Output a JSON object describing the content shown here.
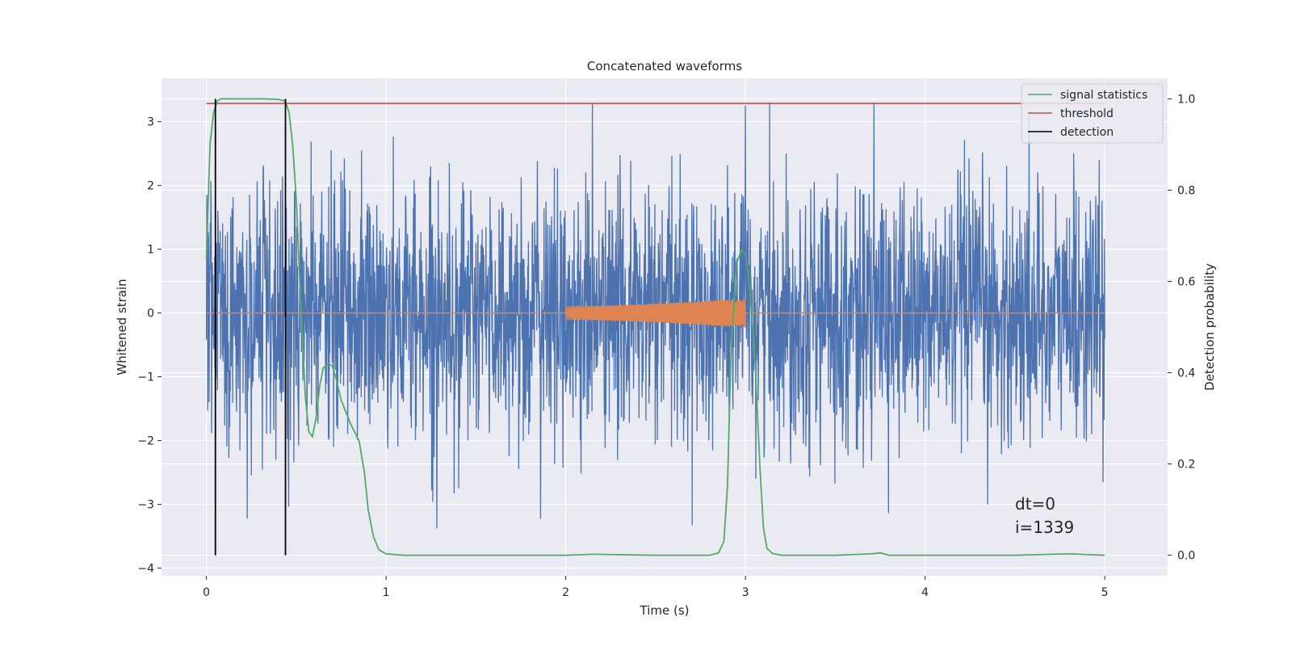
{
  "chart_data": {
    "type": "line",
    "title": "Concatenated waveforms",
    "xlabel": "Time (s)",
    "ylabel_left": "Whitened strain",
    "ylabel_right": "Detection probability",
    "xlim": [
      -0.25,
      5.35
    ],
    "ylim_left": [
      -4.12,
      3.68
    ],
    "ylim_right": [
      -0.045,
      1.045
    ],
    "x_ticks": [
      0,
      1,
      2,
      3,
      4,
      5
    ],
    "x_tick_labels": [
      "0",
      "1",
      "2",
      "3",
      "4",
      "5"
    ],
    "y_left_ticks": [
      -4,
      -3,
      -2,
      -1,
      0,
      1,
      2,
      3
    ],
    "y_left_tick_labels": [
      "−4",
      "−3",
      "−2",
      "−1",
      "0",
      "1",
      "2",
      "3"
    ],
    "y_right_ticks": [
      0.0,
      0.2,
      0.4,
      0.6,
      0.8,
      1.0
    ],
    "y_right_tick_labels": [
      "0.0",
      "0.2",
      "0.4",
      "0.6",
      "0.8",
      "1.0"
    ],
    "grid": true,
    "legend_position": "top-right",
    "series": [
      {
        "name": "",
        "kind": "noise",
        "axis": "left",
        "color": "#4C72B0",
        "x_range": [
          0,
          5
        ],
        "y_envelope": [
          -3.8,
          3.3
        ],
        "typical_amplitude": 1.0
      },
      {
        "name": "",
        "kind": "chirp",
        "axis": "left",
        "color": "#DD8452",
        "x_range": [
          0,
          5
        ],
        "chirp_x_range": [
          2.0,
          3.0
        ],
        "amplitude_start": 0.1,
        "amplitude_end": 0.23
      },
      {
        "name": "signal statistics",
        "axis": "right",
        "color": "#55A868",
        "x": [
          0,
          0.02,
          0.04,
          0.06,
          0.08,
          0.1,
          0.15,
          0.2,
          0.3,
          0.4,
          0.44,
          0.46,
          0.48,
          0.5,
          0.52,
          0.55,
          0.57,
          0.59,
          0.61,
          0.63,
          0.65,
          0.68,
          0.7,
          0.72,
          0.75,
          0.8,
          0.85,
          0.88,
          0.9,
          0.93,
          0.96,
          1.0,
          1.1,
          1.5,
          2.0,
          2.15,
          2.5,
          2.8,
          2.85,
          2.88,
          2.9,
          2.92,
          2.95,
          2.98,
          3.0,
          3.02,
          3.05,
          3.08,
          3.1,
          3.12,
          3.15,
          3.2,
          3.5,
          3.7,
          3.75,
          3.8,
          4.0,
          4.5,
          4.8,
          5.0
        ],
        "y": [
          0.65,
          0.9,
          0.97,
          0.995,
          1.0,
          1.0,
          1.0,
          1.0,
          1.0,
          0.999,
          0.995,
          0.97,
          0.9,
          0.78,
          0.6,
          0.35,
          0.27,
          0.26,
          0.3,
          0.37,
          0.41,
          0.42,
          0.415,
          0.39,
          0.34,
          0.29,
          0.25,
          0.18,
          0.1,
          0.04,
          0.012,
          0.003,
          0.0,
          0.0,
          0.0,
          0.002,
          0.0,
          0.0,
          0.005,
          0.03,
          0.15,
          0.45,
          0.64,
          0.67,
          0.66,
          0.6,
          0.45,
          0.2,
          0.06,
          0.015,
          0.004,
          0.0,
          0.0,
          0.003,
          0.005,
          0.0,
          0.0,
          0.0,
          0.003,
          0.0
        ]
      },
      {
        "name": "threshold",
        "axis": "right",
        "color": "#C44E52",
        "x": [
          0,
          5
        ],
        "y": [
          0.99,
          0.99
        ]
      }
    ],
    "detections": {
      "name": "detection",
      "axis": "right",
      "color": "#000000",
      "x": [
        0.05,
        0.44
      ],
      "y_range": [
        0.0,
        1.0
      ]
    },
    "annotations": [
      "dt=0",
      "i=1339"
    ]
  }
}
